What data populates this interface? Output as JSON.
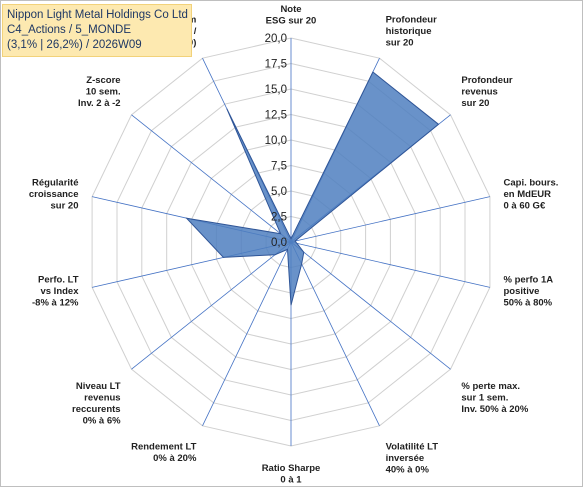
{
  "title_lines": [
    "Nippon Light Metal Holdings Co Ltd",
    "C4_Actions / 5_MONDE",
    "(3,1% | 26,2%) / 2026W09"
  ],
  "chart_data": {
    "type": "radar",
    "range": [
      0,
      20
    ],
    "ticks": [
      "0,0",
      "2,5",
      "5,0",
      "7,5",
      "10,0",
      "12,5",
      "15,0",
      "17,5",
      "20,0"
    ],
    "tick_values": [
      0,
      2.5,
      5,
      7.5,
      10,
      12.5,
      15,
      17.5,
      20
    ],
    "axes": [
      {
        "label": [
          "Note",
          "ESG sur 20"
        ],
        "value": 0.3
      },
      {
        "label": [
          "Profondeur",
          "historique",
          "sur 20"
        ],
        "value": 18.5
      },
      {
        "label": [
          "Profondeur",
          "revenus",
          "sur 20"
        ],
        "value": 18.5
      },
      {
        "label": [
          "Capi. bours.",
          "en MdEUR",
          "0 à 60 G€"
        ],
        "value": 0.4
      },
      {
        "label": [
          "% perfo 1A",
          "positive",
          "50% à 80%"
        ],
        "value": 0.6
      },
      {
        "label": [
          "% perte max.",
          "sur 1 sem.",
          "Inv. 50% à 20%"
        ],
        "value": 1.6
      },
      {
        "label": [
          "Volatilité LT",
          "inversée",
          "40% à 0%"
        ],
        "value": 2.4
      },
      {
        "label": [
          "Ratio Sharpe",
          "0 à 1"
        ],
        "value": 6.2
      },
      {
        "label": [
          "Rendement LT",
          "0% à 20%"
        ],
        "value": 0.8
      },
      {
        "label": [
          "Niveau LT",
          "revenus",
          "reccurents",
          "0% à 6%"
        ],
        "value": 2.0
      },
      {
        "label": [
          "Perfo. LT",
          "vs Index",
          "-8% à 12%"
        ],
        "value": 6.8
      },
      {
        "label": [
          "Régularité",
          "croissance",
          "sur 20"
        ],
        "value": 10.5
      },
      {
        "label": [
          "Z-score",
          "10 sem.",
          "Inv. 2 à -2"
        ],
        "value": 1.3
      },
      {
        "label": [
          "Momentum",
          "Achat (20) /",
          "Vente (0)"
        ],
        "value": 14.5
      }
    ],
    "fill_color": "#4f7fbf",
    "fill_opacity": 0.85,
    "grid_color": "#d0d0d0",
    "spoke_color": "#4472c4",
    "grid": true
  }
}
